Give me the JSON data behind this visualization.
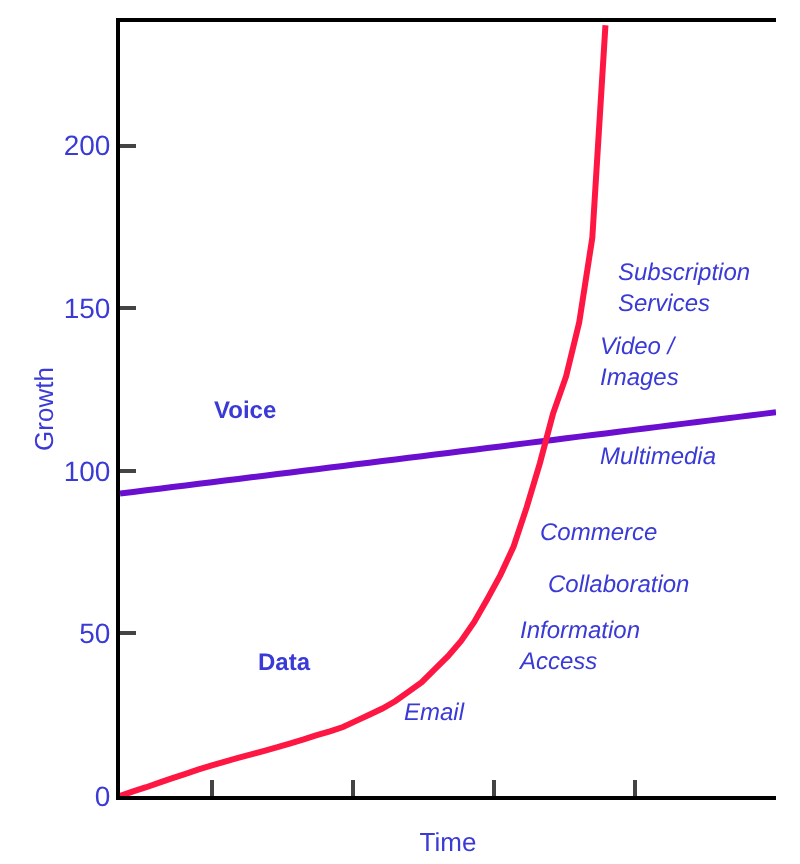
{
  "chart_data": {
    "type": "line",
    "xlabel": "Time",
    "ylabel": "Growth",
    "categories": [
      null,
      null,
      null,
      null,
      null,
      null,
      null,
      null,
      null,
      null,
      null,
      null,
      null,
      null,
      null,
      null,
      null,
      null,
      null,
      null,
      null,
      null,
      null,
      null,
      null,
      null,
      null,
      null,
      null,
      null,
      null,
      null,
      null,
      null,
      null,
      null,
      null,
      null,
      null,
      null,
      null,
      null,
      null,
      null,
      null,
      null,
      null,
      null,
      null,
      null,
      null
    ],
    "ylim": [
      0,
      238
    ],
    "yticks": [
      0,
      50,
      100,
      150,
      200
    ],
    "marker": "none",
    "line_style": "solid",
    "series": [
      {
        "color": "#6a0fd0",
        "values": [
          93,
          93.5,
          94,
          94.5,
          95,
          95.5,
          96,
          96.5,
          97,
          97.5,
          98,
          98.5,
          99,
          99.5,
          100,
          100.5,
          101,
          101.5,
          102,
          102.5,
          103,
          103.5,
          104,
          104.5,
          105,
          105.5,
          106,
          106.5,
          107,
          107.5,
          108,
          108.5,
          109,
          109.5,
          110,
          110.5,
          111,
          111.5,
          112,
          112.5,
          113,
          113.5,
          114,
          114.5,
          115,
          115.5,
          116,
          116.5,
          117,
          117.5,
          118
        ]
      },
      {
        "color": "#ff1744",
        "values": [
          0,
          1.4,
          2.7,
          4.1,
          5.5,
          6.8,
          8.2,
          9.4,
          10.6,
          11.7,
          12.8,
          13.9,
          15,
          16.2,
          17.4,
          18.7,
          19.9,
          21.2,
          23.1,
          25,
          26.9,
          29.2,
          32.1,
          35,
          39,
          43,
          47.7,
          53.5,
          60.6,
          68,
          76.7,
          88.8,
          102.3,
          117.5,
          129,
          145.6,
          171.7,
          237,
          null,
          null,
          null,
          null,
          null,
          null,
          null,
          null,
          null,
          null,
          null,
          null,
          null
        ]
      }
    ],
    "annotations": [
      "Voice",
      "Data",
      "Email",
      "Information\nAccess",
      "Collaboration",
      "Commerce",
      "Multimedia",
      "Video /\nImages",
      "Subscription\nServices"
    ]
  }
}
